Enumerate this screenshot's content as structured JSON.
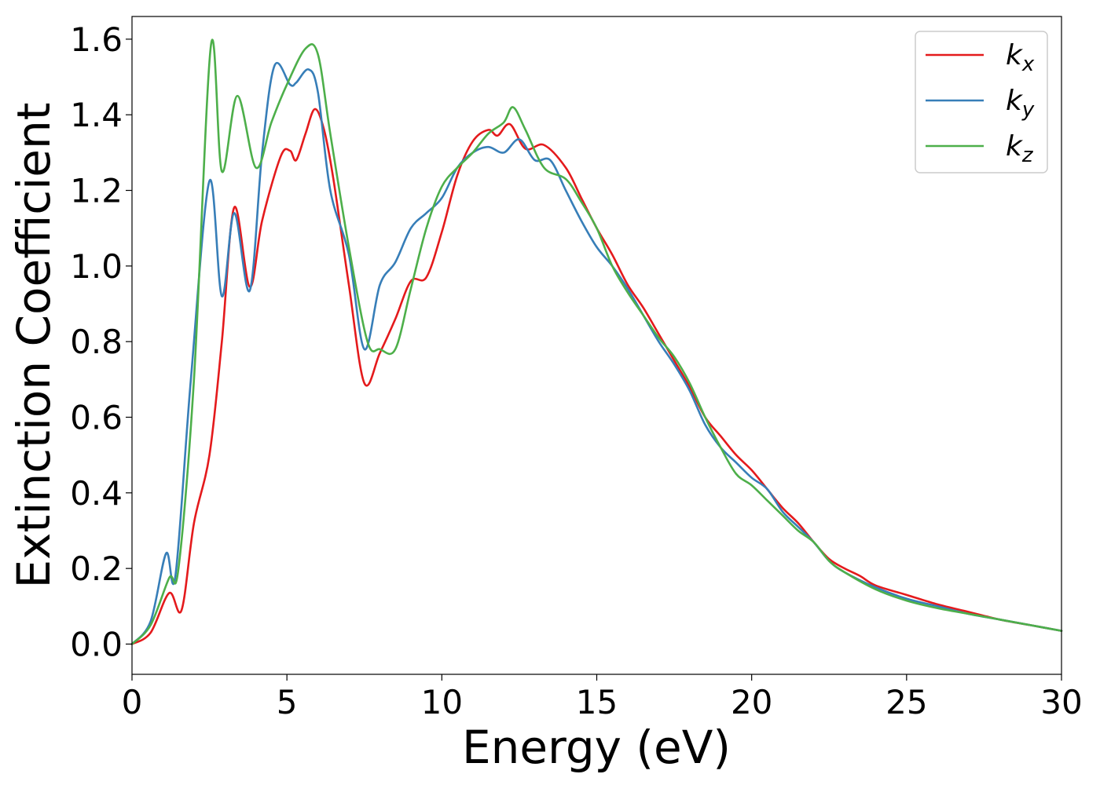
{
  "chart_data": {
    "type": "line",
    "xlabel": "Energy (eV)",
    "ylabel": "Extinction Coefficient",
    "xlim": [
      0,
      30
    ],
    "ylim": [
      -0.08,
      1.66
    ],
    "x_ticks": [
      "0",
      "5",
      "10",
      "15",
      "20",
      "25",
      "30"
    ],
    "y_ticks": [
      "0.0",
      "0.2",
      "0.4",
      "0.6",
      "0.8",
      "1.0",
      "1.2",
      "1.4",
      "1.6"
    ],
    "grid": false,
    "legend_position": "top-right",
    "series": [
      {
        "name": "kx",
        "symbol": "k",
        "subscript": "x",
        "color": "#e41a1c",
        "points": [
          [
            0,
            0
          ],
          [
            0.6,
            0.03
          ],
          [
            1.2,
            0.135
          ],
          [
            1.6,
            0.09
          ],
          [
            2.0,
            0.32
          ],
          [
            2.5,
            0.5
          ],
          [
            2.9,
            0.8
          ],
          [
            3.3,
            1.155
          ],
          [
            3.8,
            0.945
          ],
          [
            4.2,
            1.12
          ],
          [
            4.8,
            1.29
          ],
          [
            5.1,
            1.305
          ],
          [
            5.3,
            1.28
          ],
          [
            5.6,
            1.35
          ],
          [
            5.9,
            1.415
          ],
          [
            6.2,
            1.36
          ],
          [
            6.5,
            1.23
          ],
          [
            7.0,
            0.95
          ],
          [
            7.5,
            0.69
          ],
          [
            8.0,
            0.77
          ],
          [
            8.5,
            0.86
          ],
          [
            9.0,
            0.96
          ],
          [
            9.5,
            0.97
          ],
          [
            10.0,
            1.09
          ],
          [
            10.5,
            1.24
          ],
          [
            11.0,
            1.33
          ],
          [
            11.5,
            1.36
          ],
          [
            11.8,
            1.345
          ],
          [
            12.2,
            1.375
          ],
          [
            12.7,
            1.31
          ],
          [
            13.3,
            1.32
          ],
          [
            14.0,
            1.26
          ],
          [
            14.5,
            1.18
          ],
          [
            15.0,
            1.1
          ],
          [
            15.5,
            1.03
          ],
          [
            16.0,
            0.95
          ],
          [
            16.5,
            0.89
          ],
          [
            17.0,
            0.82
          ],
          [
            17.5,
            0.75
          ],
          [
            18.0,
            0.68
          ],
          [
            18.5,
            0.6
          ],
          [
            19.0,
            0.55
          ],
          [
            19.5,
            0.5
          ],
          [
            20.0,
            0.46
          ],
          [
            20.5,
            0.41
          ],
          [
            21.0,
            0.36
          ],
          [
            21.5,
            0.32
          ],
          [
            22.0,
            0.27
          ],
          [
            22.5,
            0.225
          ],
          [
            23.0,
            0.2
          ],
          [
            23.5,
            0.18
          ],
          [
            24.0,
            0.155
          ],
          [
            25.0,
            0.13
          ],
          [
            26.0,
            0.105
          ],
          [
            27.0,
            0.085
          ],
          [
            28.0,
            0.065
          ],
          [
            29.0,
            0.05
          ],
          [
            30.0,
            0.035
          ]
        ]
      },
      {
        "name": "ky",
        "symbol": "k",
        "subscript": "y",
        "color": "#377eb8",
        "points": [
          [
            0,
            0
          ],
          [
            0.6,
            0.06
          ],
          [
            1.1,
            0.24
          ],
          [
            1.4,
            0.18
          ],
          [
            1.9,
            0.7
          ],
          [
            2.5,
            1.225
          ],
          [
            2.9,
            0.92
          ],
          [
            3.3,
            1.14
          ],
          [
            3.8,
            0.935
          ],
          [
            4.2,
            1.3
          ],
          [
            4.6,
            1.53
          ],
          [
            5.1,
            1.48
          ],
          [
            5.3,
            1.485
          ],
          [
            5.7,
            1.52
          ],
          [
            6.0,
            1.46
          ],
          [
            6.4,
            1.2
          ],
          [
            7.0,
            1.03
          ],
          [
            7.5,
            0.78
          ],
          [
            8.0,
            0.95
          ],
          [
            8.5,
            1.01
          ],
          [
            9.0,
            1.1
          ],
          [
            9.5,
            1.14
          ],
          [
            10.0,
            1.18
          ],
          [
            10.5,
            1.26
          ],
          [
            11.0,
            1.3
          ],
          [
            11.5,
            1.315
          ],
          [
            12.0,
            1.3
          ],
          [
            12.5,
            1.335
          ],
          [
            13.0,
            1.28
          ],
          [
            13.5,
            1.28
          ],
          [
            14.0,
            1.2
          ],
          [
            14.5,
            1.12
          ],
          [
            15.0,
            1.05
          ],
          [
            15.5,
            1.0
          ],
          [
            16.0,
            0.94
          ],
          [
            16.5,
            0.87
          ],
          [
            17.0,
            0.8
          ],
          [
            17.5,
            0.74
          ],
          [
            18.0,
            0.67
          ],
          [
            18.5,
            0.58
          ],
          [
            19.0,
            0.52
          ],
          [
            19.5,
            0.48
          ],
          [
            20.0,
            0.44
          ],
          [
            20.5,
            0.41
          ],
          [
            21.0,
            0.35
          ],
          [
            21.5,
            0.31
          ],
          [
            22.0,
            0.27
          ],
          [
            22.5,
            0.22
          ],
          [
            23.0,
            0.19
          ],
          [
            24.0,
            0.15
          ],
          [
            25.0,
            0.12
          ],
          [
            26.0,
            0.1
          ],
          [
            27.0,
            0.08
          ],
          [
            28.0,
            0.065
          ],
          [
            29.0,
            0.05
          ],
          [
            30.0,
            0.035
          ]
        ]
      },
      {
        "name": "kz",
        "symbol": "k",
        "subscript": "z",
        "color": "#4daf4a",
        "points": [
          [
            0,
            0
          ],
          [
            0.6,
            0.05
          ],
          [
            1.2,
            0.175
          ],
          [
            1.5,
            0.2
          ],
          [
            2.0,
            0.7
          ],
          [
            2.55,
            1.585
          ],
          [
            2.9,
            1.25
          ],
          [
            3.4,
            1.45
          ],
          [
            4.0,
            1.26
          ],
          [
            4.5,
            1.38
          ],
          [
            5.0,
            1.48
          ],
          [
            5.6,
            1.575
          ],
          [
            6.0,
            1.56
          ],
          [
            6.4,
            1.35
          ],
          [
            7.0,
            1.05
          ],
          [
            7.6,
            0.8
          ],
          [
            8.0,
            0.78
          ],
          [
            8.5,
            0.78
          ],
          [
            9.0,
            0.94
          ],
          [
            9.5,
            1.1
          ],
          [
            10.0,
            1.21
          ],
          [
            10.5,
            1.26
          ],
          [
            11.0,
            1.3
          ],
          [
            11.5,
            1.35
          ],
          [
            12.0,
            1.38
          ],
          [
            12.3,
            1.42
          ],
          [
            12.7,
            1.36
          ],
          [
            13.3,
            1.26
          ],
          [
            14.0,
            1.23
          ],
          [
            14.5,
            1.17
          ],
          [
            15.0,
            1.1
          ],
          [
            15.5,
            1.0
          ],
          [
            16.0,
            0.93
          ],
          [
            16.5,
            0.87
          ],
          [
            17.0,
            0.81
          ],
          [
            17.5,
            0.76
          ],
          [
            18.0,
            0.69
          ],
          [
            18.5,
            0.6
          ],
          [
            19.0,
            0.52
          ],
          [
            19.5,
            0.45
          ],
          [
            20.0,
            0.42
          ],
          [
            20.5,
            0.38
          ],
          [
            21.0,
            0.34
          ],
          [
            21.5,
            0.3
          ],
          [
            22.0,
            0.27
          ],
          [
            22.5,
            0.22
          ],
          [
            23.0,
            0.19
          ],
          [
            24.0,
            0.145
          ],
          [
            25.0,
            0.115
          ],
          [
            26.0,
            0.095
          ],
          [
            27.0,
            0.08
          ],
          [
            28.0,
            0.065
          ],
          [
            29.0,
            0.05
          ],
          [
            30.0,
            0.035
          ]
        ]
      }
    ]
  }
}
